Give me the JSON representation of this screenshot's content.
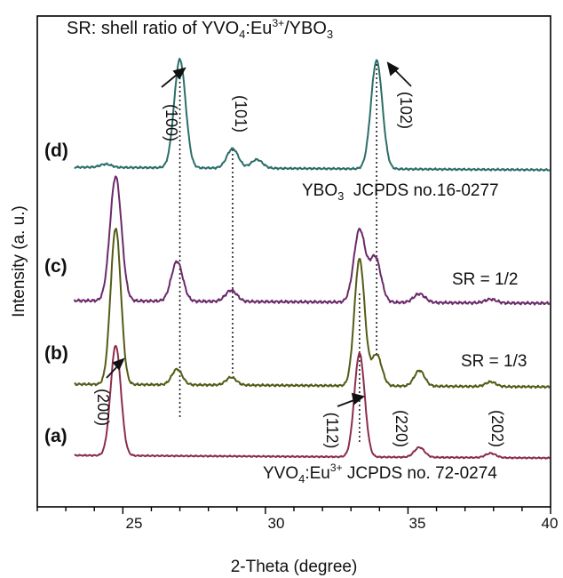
{
  "chart_data": {
    "type": "line",
    "title": "SR: shell ratio of YVO4:Eu3+/YBO3",
    "title_parts": {
      "pre": "SR: shell ratio of YVO",
      "s1": "4",
      "mid": ":Eu",
      "sup": "3+",
      "mid2": "/YBO",
      "s2": "3"
    },
    "xlabel": "2-Theta (degree)",
    "ylabel": "Intensity (a. u.)",
    "xlim": [
      22,
      40
    ],
    "xticks": [
      "25",
      "30",
      "35",
      "40"
    ],
    "y_tick_labels": false,
    "grid": false,
    "legend": "none",
    "series": [
      {
        "name": "(a)",
        "color": "#8b2e4e",
        "annotation": {
          "pre": "YVO",
          "s1": "4",
          "mid": ":Eu",
          "sup": "3+",
          "post": " JCPDS no. 72-0274"
        },
        "peaks": [
          {
            "x": 24.75,
            "height": 1.0,
            "hkl": "(200)"
          },
          {
            "x": 33.3,
            "height": 0.94,
            "hkl": "(112)"
          },
          {
            "x": 35.4,
            "height": 0.09,
            "hkl": "(220)"
          },
          {
            "x": 37.9,
            "height": 0.04,
            "hkl": "(202)"
          }
        ]
      },
      {
        "name": "(b)",
        "color": "#555b16",
        "annotation": "SR = 1/3",
        "peaks": [
          {
            "x": 24.75,
            "height": 1.0
          },
          {
            "x": 26.9,
            "height": 0.1
          },
          {
            "x": 28.8,
            "height": 0.05
          },
          {
            "x": 33.3,
            "height": 0.81
          },
          {
            "x": 33.9,
            "height": 0.2
          },
          {
            "x": 35.4,
            "height": 0.1
          },
          {
            "x": 37.9,
            "height": 0.03
          }
        ]
      },
      {
        "name": "(c)",
        "color": "#6c2a6b",
        "annotation": "SR = 1/2",
        "peaks": [
          {
            "x": 24.75,
            "height": 1.0
          },
          {
            "x": 26.9,
            "height": 0.32
          },
          {
            "x": 28.8,
            "height": 0.09
          },
          {
            "x": 33.3,
            "height": 0.58
          },
          {
            "x": 33.85,
            "height": 0.36
          },
          {
            "x": 35.4,
            "height": 0.07
          },
          {
            "x": 37.9,
            "height": 0.03
          }
        ]
      },
      {
        "name": "(d)",
        "color": "#2c6e6a",
        "annotation": {
          "pre": "YBO",
          "s1": "3",
          "post": "  JCPDS no.16-0277"
        },
        "peaks": [
          {
            "x": 24.4,
            "height": 0.03
          },
          {
            "x": 27.0,
            "height": 1.0,
            "hkl": "(100)"
          },
          {
            "x": 28.85,
            "height": 0.18,
            "hkl": "(101)"
          },
          {
            "x": 29.7,
            "height": 0.08
          },
          {
            "x": 33.9,
            "height": 1.0,
            "hkl": "(102)"
          }
        ]
      }
    ],
    "reference_lines_x": [
      27.0,
      28.85,
      33.3,
      33.9
    ]
  }
}
